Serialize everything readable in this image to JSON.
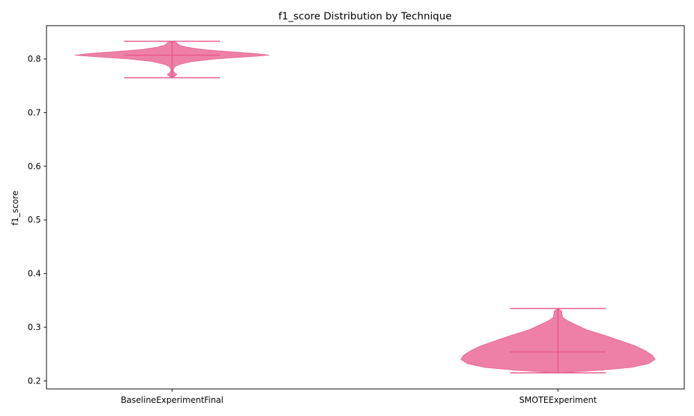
{
  "chart_data": {
    "type": "violin",
    "title": "f1_score Distribution by Technique",
    "xlabel": "",
    "ylabel": "f1_score",
    "ylim": [
      0.185,
      0.862
    ],
    "yticks": [
      0.2,
      0.3,
      0.4,
      0.5,
      0.6,
      0.7,
      0.8
    ],
    "ytick_labels": [
      "0.2",
      "0.3",
      "0.4",
      "0.5",
      "0.6",
      "0.7",
      "0.8"
    ],
    "grid": false,
    "colors": {
      "violin_fill": "#e8558a",
      "violin_line": "#e8558a",
      "axis": "#000000"
    },
    "categories": [
      "BaselineExperimentFinal",
      "SMOTEExperiment"
    ],
    "violins": [
      {
        "category": "BaselineExperimentFinal",
        "min": 0.765,
        "max": 0.833,
        "median": 0.807,
        "density": [
          [
            0.765,
            0.0
          ],
          [
            0.768,
            0.03
          ],
          [
            0.771,
            0.05
          ],
          [
            0.775,
            0.02
          ],
          [
            0.78,
            0.01
          ],
          [
            0.786,
            0.03
          ],
          [
            0.79,
            0.08
          ],
          [
            0.795,
            0.2
          ],
          [
            0.8,
            0.45
          ],
          [
            0.804,
            0.78
          ],
          [
            0.807,
            1.0
          ],
          [
            0.81,
            0.85
          ],
          [
            0.814,
            0.55
          ],
          [
            0.818,
            0.3
          ],
          [
            0.822,
            0.15
          ],
          [
            0.826,
            0.07
          ],
          [
            0.83,
            0.05
          ],
          [
            0.833,
            0.0
          ]
        ]
      },
      {
        "category": "SMOTEExperiment",
        "min": 0.215,
        "max": 0.335,
        "median": 0.254,
        "density": [
          [
            0.215,
            0.0
          ],
          [
            0.22,
            0.45
          ],
          [
            0.225,
            0.75
          ],
          [
            0.232,
            0.93
          ],
          [
            0.24,
            1.0
          ],
          [
            0.248,
            0.97
          ],
          [
            0.256,
            0.9
          ],
          [
            0.265,
            0.8
          ],
          [
            0.275,
            0.64
          ],
          [
            0.285,
            0.48
          ],
          [
            0.295,
            0.3
          ],
          [
            0.305,
            0.18
          ],
          [
            0.312,
            0.1
          ],
          [
            0.318,
            0.05
          ],
          [
            0.325,
            0.04
          ],
          [
            0.33,
            0.04
          ],
          [
            0.335,
            0.0
          ]
        ]
      }
    ]
  }
}
